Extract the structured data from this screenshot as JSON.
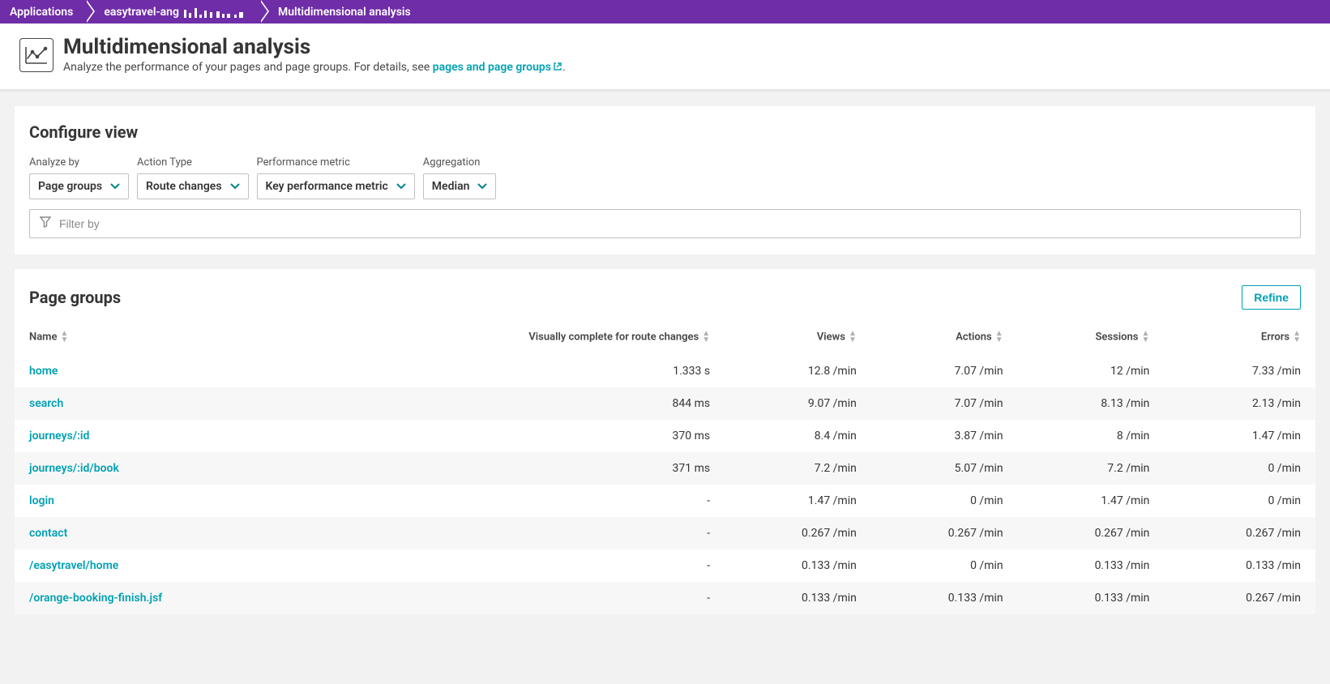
{
  "breadcrumb": {
    "items": [
      {
        "label": "Applications"
      },
      {
        "label": "easytravel-ang"
      },
      {
        "label": "Multidimensional analysis"
      }
    ]
  },
  "header": {
    "title": "Multidimensional analysis",
    "subtitle_prefix": "Analyze the performance of your pages and page groups. For details, see ",
    "link_text": "pages and page groups",
    "subtitle_suffix": "."
  },
  "configure": {
    "title": "Configure view",
    "analyze_by": {
      "label": "Analyze by",
      "value": "Page groups"
    },
    "action_type": {
      "label": "Action Type",
      "value": "Route changes"
    },
    "performance_metric": {
      "label": "Performance metric",
      "value": "Key performance metric"
    },
    "aggregation": {
      "label": "Aggregation",
      "value": "Median"
    },
    "filter_placeholder": "Filter by"
  },
  "table": {
    "title": "Page groups",
    "refine_label": "Refine",
    "columns": [
      "Name",
      "Visually complete for route changes",
      "Views",
      "Actions",
      "Sessions",
      "Errors"
    ],
    "rows": [
      {
        "name": "home",
        "vc": "1.333 s",
        "views": "12.8 /min",
        "actions": "7.07 /min",
        "sessions": "12 /min",
        "errors": "7.33 /min"
      },
      {
        "name": "search",
        "vc": "844 ms",
        "views": "9.07 /min",
        "actions": "7.07 /min",
        "sessions": "8.13 /min",
        "errors": "2.13 /min"
      },
      {
        "name": "journeys/:id",
        "vc": "370 ms",
        "views": "8.4 /min",
        "actions": "3.87 /min",
        "sessions": "8 /min",
        "errors": "1.47 /min"
      },
      {
        "name": "journeys/:id/book",
        "vc": "371 ms",
        "views": "7.2 /min",
        "actions": "5.07 /min",
        "sessions": "7.2 /min",
        "errors": "0 /min"
      },
      {
        "name": "login",
        "vc": "-",
        "views": "1.47 /min",
        "actions": "0 /min",
        "sessions": "1.47 /min",
        "errors": "0 /min"
      },
      {
        "name": "contact",
        "vc": "-",
        "views": "0.267 /min",
        "actions": "0.267 /min",
        "sessions": "0.267 /min",
        "errors": "0.267 /min"
      },
      {
        "name": "/easytravel/home",
        "vc": "-",
        "views": "0.133 /min",
        "actions": "0 /min",
        "sessions": "0.133 /min",
        "errors": "0.133 /min"
      },
      {
        "name": "/orange-booking-finish.jsf",
        "vc": "-",
        "views": "0.133 /min",
        "actions": "0.133 /min",
        "sessions": "0.133 /min",
        "errors": "0.267 /min"
      }
    ]
  },
  "colors": {
    "accent": "#00a1b2",
    "breadcrumb_bg": "#6f2da8",
    "page_bg": "#f2f2f2",
    "card_bg": "#ffffff",
    "stripe_bg": "#f7f7f7"
  }
}
